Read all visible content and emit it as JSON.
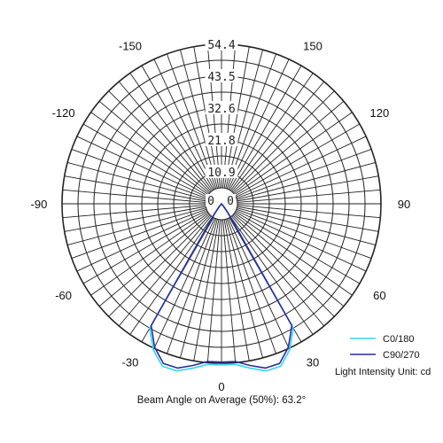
{
  "chart_data": {
    "type": "polar",
    "unit_label": "Light Intensity Unit: cd",
    "ring_labels": [
      "54.4",
      "43.5",
      "32.6",
      "21.8",
      "10.9",
      "0"
    ],
    "ring_values": [
      54.4,
      43.5,
      32.6,
      21.8,
      10.9
    ],
    "radial_max": 54.4,
    "angle_labels": [
      {
        "angle": 0,
        "label": "0"
      },
      {
        "angle": 30,
        "label": "30"
      },
      {
        "angle": 60,
        "label": "60"
      },
      {
        "angle": 90,
        "label": "90"
      },
      {
        "angle": 120,
        "label": "120"
      },
      {
        "angle": 150,
        "label": "150"
      },
      {
        "angle": -30,
        "label": "-30"
      },
      {
        "angle": -60,
        "label": "-60"
      },
      {
        "angle": -90,
        "label": "-90"
      },
      {
        "angle": -120,
        "label": "-120"
      },
      {
        "angle": -150,
        "label": "-150"
      }
    ],
    "grid": true,
    "legend_position": "bottom-right",
    "series": [
      {
        "name": "C0/180",
        "color": "#33d6f0",
        "angles": [
          -45,
          -40,
          -35,
          -30,
          -25,
          -20,
          -15,
          -10,
          -5,
          0,
          5,
          10,
          15,
          20,
          25,
          30,
          35,
          40,
          45
        ],
        "values": [
          0,
          1,
          4,
          49,
          55,
          59,
          59,
          57,
          55,
          55,
          55,
          57,
          59,
          59,
          55,
          49,
          4,
          1,
          0
        ]
      },
      {
        "name": "C90/270",
        "color": "#2a2aa0",
        "angles": [
          -45,
          -40,
          -35,
          -30,
          -25,
          -20,
          -15,
          -10,
          -5,
          0,
          5,
          10,
          15,
          20,
          25,
          30,
          35,
          40,
          45
        ],
        "values": [
          0,
          1,
          4,
          48,
          54,
          58,
          58,
          56,
          54,
          54,
          54,
          56,
          58,
          58,
          54,
          48,
          4,
          1,
          0
        ]
      }
    ]
  },
  "caption": "Beam Angle on Average (50%): 63.2°"
}
